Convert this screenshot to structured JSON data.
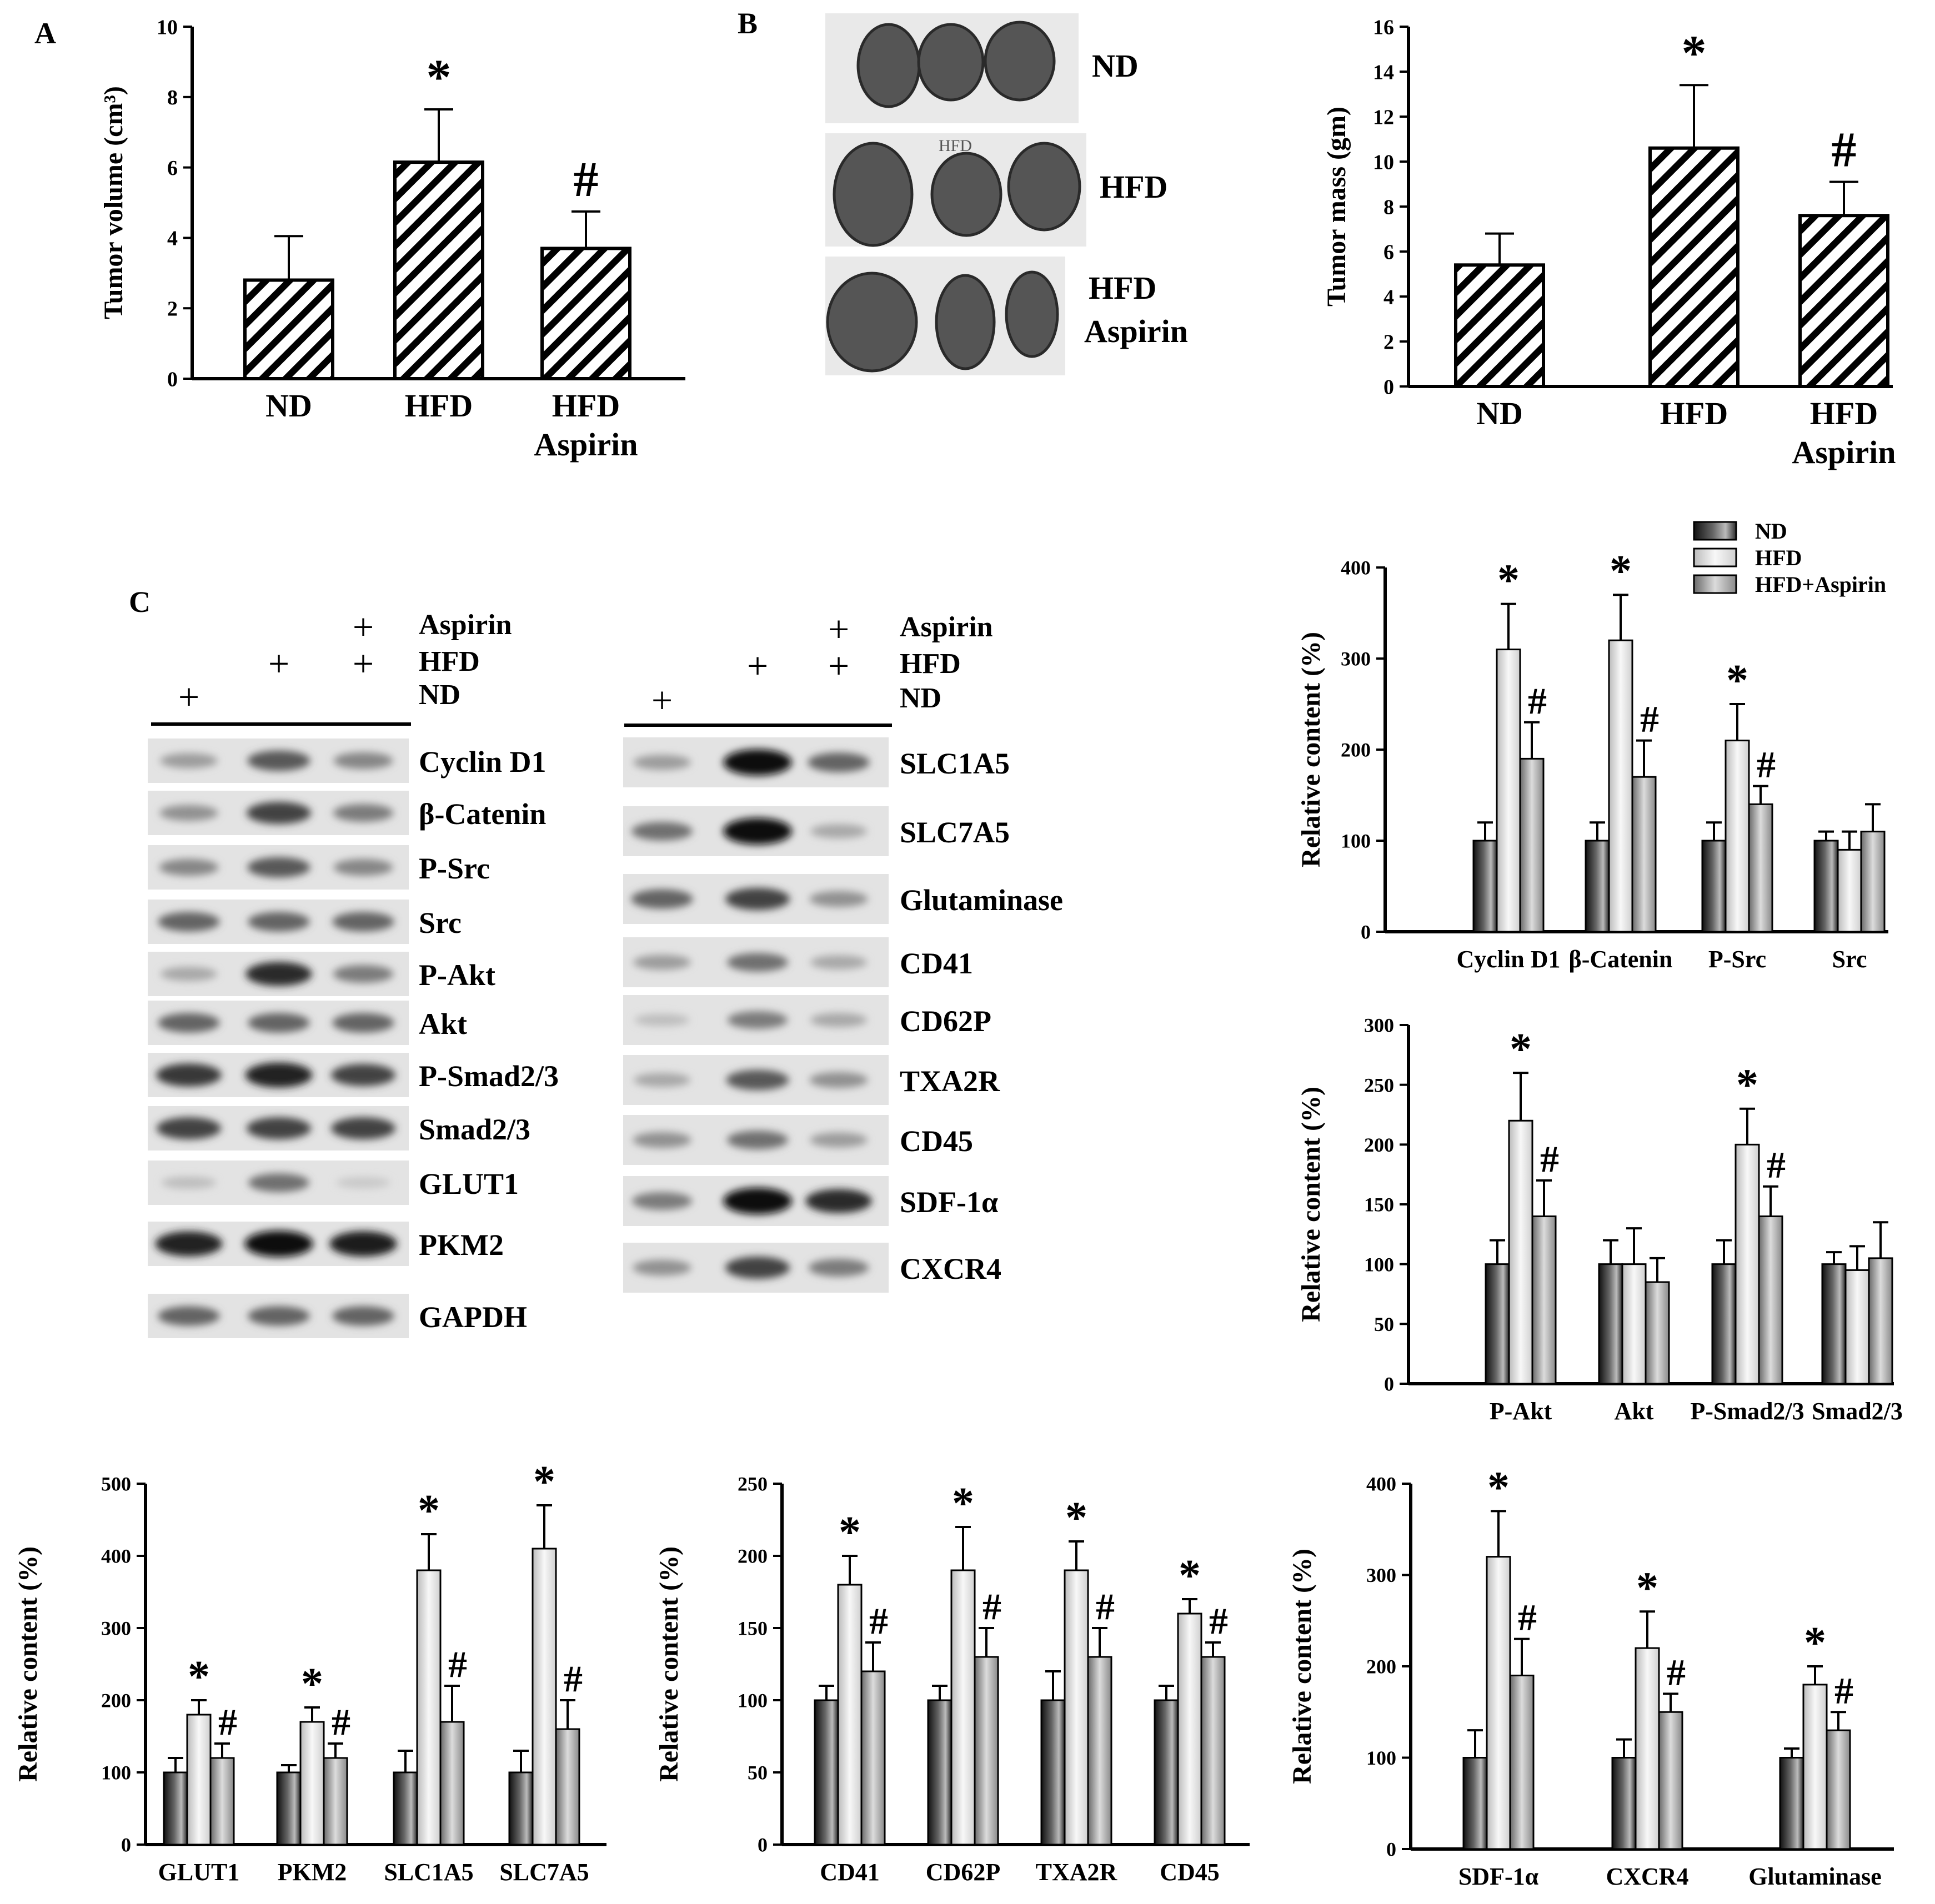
{
  "figure": {
    "panel_labels": {
      "a": "A",
      "b": "B",
      "c": "C"
    },
    "photo_labels": {
      "nd": "ND",
      "hfd": "HFD",
      "asp1": "HFD",
      "asp2": "Aspirin"
    },
    "photo_note": "HFD",
    "legend": [
      "ND",
      "HFD",
      "HFD+Aspirin"
    ],
    "blot_left": {
      "row_aspirin": "Aspirin",
      "row_hfd": "HFD",
      "row_nd": "ND",
      "plus": "+",
      "bands": [
        "Cyclin D1",
        "β-Catenin",
        "P-Src",
        "Src",
        "P-Akt",
        "Akt",
        "P-Smad2/3",
        "Smad2/3",
        "GLUT1",
        "PKM2",
        "GAPDH"
      ],
      "intensity": [
        [
          0.35,
          0.65,
          0.45
        ],
        [
          0.4,
          0.75,
          0.5
        ],
        [
          0.45,
          0.65,
          0.45
        ],
        [
          0.6,
          0.6,
          0.6
        ],
        [
          0.3,
          0.85,
          0.5
        ],
        [
          0.6,
          0.6,
          0.6
        ],
        [
          0.8,
          0.9,
          0.75
        ],
        [
          0.75,
          0.75,
          0.75
        ],
        [
          0.2,
          0.55,
          0.15
        ],
        [
          0.9,
          0.98,
          0.92
        ],
        [
          0.6,
          0.6,
          0.6
        ]
      ]
    },
    "blot_right": {
      "row_aspirin": "Aspirin",
      "row_hfd": "HFD",
      "row_nd": "ND",
      "plus": "+",
      "bands": [
        "SLC1A5",
        "SLC7A5",
        "Glutaminase",
        "CD41",
        "CD62P",
        "TXA2R",
        "CD45",
        "SDF-1α",
        "CXCR4"
      ],
      "intensity": [
        [
          0.35,
          0.98,
          0.6
        ],
        [
          0.55,
          1.0,
          0.3
        ],
        [
          0.6,
          0.75,
          0.4
        ],
        [
          0.35,
          0.55,
          0.3
        ],
        [
          0.2,
          0.5,
          0.3
        ],
        [
          0.3,
          0.65,
          0.4
        ],
        [
          0.4,
          0.55,
          0.35
        ],
        [
          0.5,
          1.0,
          0.85
        ],
        [
          0.4,
          0.75,
          0.5
        ]
      ]
    }
  },
  "chart_data": [
    {
      "id": "A",
      "type": "bar",
      "categories": [
        "ND",
        "HFD",
        "HFD\nAspirin"
      ],
      "values": [
        2.8,
        6.15,
        3.7
      ],
      "errors": [
        1.25,
        1.5,
        1.05
      ],
      "markers": [
        "",
        "*",
        "#"
      ],
      "ylabel": "Tumor volume (cm³)",
      "ylim": [
        0,
        10
      ],
      "yticks": [
        "0",
        "2",
        "4",
        "6",
        "8",
        "10"
      ]
    },
    {
      "id": "B",
      "type": "bar",
      "categories": [
        "ND",
        "HFD",
        "HFD\nAspirin"
      ],
      "values": [
        5.4,
        10.6,
        7.6
      ],
      "errors": [
        1.4,
        2.8,
        1.5
      ],
      "markers": [
        "",
        "*",
        "#"
      ],
      "ylabel": "Tumor mass (gm)",
      "ylim": [
        0,
        16
      ],
      "yticks": [
        "0",
        "2",
        "4",
        "6",
        "8",
        "10",
        "12",
        "14",
        "16"
      ]
    },
    {
      "id": "C1",
      "type": "bar",
      "categories": [
        "Cyclin D1",
        "β-Catenin",
        "P-Src",
        "Src"
      ],
      "series": [
        {
          "name": "ND",
          "values": [
            100,
            100,
            100,
            100
          ],
          "errors": [
            20,
            20,
            20,
            10
          ]
        },
        {
          "name": "HFD",
          "values": [
            310,
            320,
            210,
            90
          ],
          "errors": [
            50,
            50,
            40,
            20
          ]
        },
        {
          "name": "HFD+Aspirin",
          "values": [
            190,
            170,
            140,
            110
          ],
          "errors": [
            40,
            40,
            20,
            30
          ]
        }
      ],
      "stars": [
        "*",
        "*",
        "*",
        ""
      ],
      "hashes": [
        "#",
        "#",
        "#",
        ""
      ],
      "ylabel": "Relative content (%)",
      "ylim": [
        0,
        400
      ],
      "yticks": [
        "0",
        "100",
        "200",
        "300",
        "400"
      ]
    },
    {
      "id": "C2",
      "type": "bar",
      "categories": [
        "P-Akt",
        "Akt",
        "P-Smad2/3",
        "Smad2/3"
      ],
      "series": [
        {
          "name": "ND",
          "values": [
            100,
            100,
            100,
            100
          ],
          "errors": [
            20,
            20,
            20,
            10
          ]
        },
        {
          "name": "HFD",
          "values": [
            220,
            100,
            200,
            95
          ],
          "errors": [
            40,
            30,
            30,
            20
          ]
        },
        {
          "name": "HFD+Aspirin",
          "values": [
            140,
            85,
            140,
            105
          ],
          "errors": [
            30,
            20,
            25,
            30
          ]
        }
      ],
      "stars": [
        "*",
        "",
        "*",
        ""
      ],
      "hashes": [
        "#",
        "",
        "#",
        ""
      ],
      "ylabel": "Relative content (%)",
      "ylim": [
        0,
        300
      ],
      "yticks": [
        "0",
        "50",
        "100",
        "150",
        "200",
        "250",
        "300"
      ]
    },
    {
      "id": "C3",
      "type": "bar",
      "categories": [
        "GLUT1",
        "PKM2",
        "SLC1A5",
        "SLC7A5"
      ],
      "series": [
        {
          "name": "ND",
          "values": [
            100,
            100,
            100,
            100
          ],
          "errors": [
            20,
            10,
            30,
            30
          ]
        },
        {
          "name": "HFD",
          "values": [
            180,
            170,
            380,
            410
          ],
          "errors": [
            20,
            20,
            50,
            60
          ]
        },
        {
          "name": "HFD+Aspirin",
          "values": [
            120,
            120,
            170,
            160
          ],
          "errors": [
            20,
            20,
            50,
            40
          ]
        }
      ],
      "stars": [
        "*",
        "*",
        "*",
        "*"
      ],
      "hashes": [
        "#",
        "#",
        "#",
        "#"
      ],
      "ylabel": "Relative content (%)",
      "ylim": [
        0,
        500
      ],
      "yticks": [
        "0",
        "100",
        "200",
        "300",
        "400",
        "500"
      ]
    },
    {
      "id": "C4",
      "type": "bar",
      "categories": [
        "CD41",
        "CD62P",
        "TXA2R",
        "CD45"
      ],
      "series": [
        {
          "name": "ND",
          "values": [
            100,
            100,
            100,
            100
          ],
          "errors": [
            10,
            10,
            20,
            10
          ]
        },
        {
          "name": "HFD",
          "values": [
            180,
            190,
            190,
            160
          ],
          "errors": [
            20,
            30,
            20,
            10
          ]
        },
        {
          "name": "HFD+Aspirin",
          "values": [
            120,
            130,
            130,
            130
          ],
          "errors": [
            20,
            20,
            20,
            10
          ]
        }
      ],
      "stars": [
        "*",
        "*",
        "*",
        "*"
      ],
      "hashes": [
        "#",
        "#",
        "#",
        "#"
      ],
      "ylabel": "Relative content (%)",
      "ylim": [
        0,
        250
      ],
      "yticks": [
        "0",
        "50",
        "100",
        "150",
        "200",
        "250"
      ]
    },
    {
      "id": "C5",
      "type": "bar",
      "categories": [
        "SDF-1α",
        "CXCR4",
        "Glutaminase"
      ],
      "series": [
        {
          "name": "ND",
          "values": [
            100,
            100,
            100
          ],
          "errors": [
            30,
            20,
            10
          ]
        },
        {
          "name": "HFD",
          "values": [
            320,
            220,
            180
          ],
          "errors": [
            50,
            40,
            20
          ]
        },
        {
          "name": "HFD+Aspirin",
          "values": [
            190,
            150,
            130
          ],
          "errors": [
            40,
            20,
            20
          ]
        }
      ],
      "stars": [
        "*",
        "*",
        "*"
      ],
      "hashes": [
        "#",
        "#",
        "#"
      ],
      "ylabel": "Relative content (%)",
      "ylim": [
        0,
        400
      ],
      "yticks": [
        "0",
        "100",
        "200",
        "300",
        "400"
      ]
    }
  ]
}
